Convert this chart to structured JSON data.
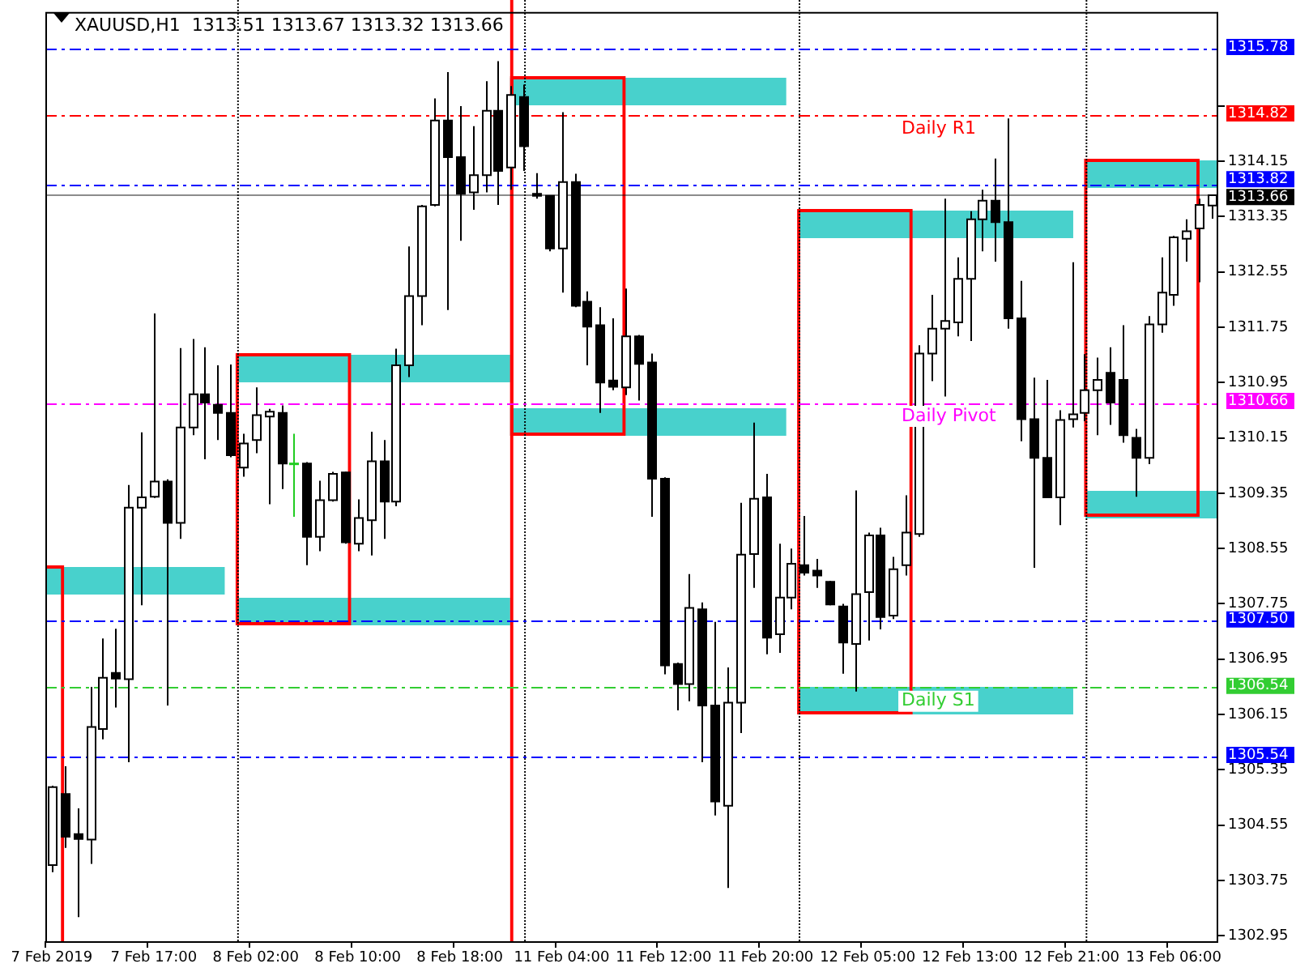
{
  "chart_data": {
    "type": "candlestick",
    "title": "XAUUSD,H1  1313.51 1313.67 1313.32 1313.66",
    "categories": [
      "7 Feb 2019",
      null,
      null,
      null,
      null,
      null,
      null,
      null,
      "7 Feb 17:00",
      null,
      null,
      null,
      null,
      null,
      null,
      null,
      "8 Feb 02:00",
      null,
      null,
      null,
      null,
      null,
      null,
      null,
      "8 Feb 10:00",
      null,
      null,
      null,
      null,
      null,
      null,
      null,
      "8 Feb 18:00",
      null,
      null,
      null,
      null,
      null,
      null,
      null,
      "11 Feb 04:00",
      null,
      null,
      null,
      null,
      null,
      null,
      null,
      "11 Feb 12:00",
      null,
      null,
      null,
      null,
      null,
      null,
      null,
      "11 Feb 20:00",
      null,
      null,
      null,
      null,
      null,
      null,
      null,
      "12 Feb 05:00",
      null,
      null,
      null,
      null,
      null,
      null,
      null,
      "12 Feb 13:00",
      null,
      null,
      null,
      null,
      null,
      null,
      null,
      "12 Feb 21:00",
      null,
      null,
      null,
      null,
      null,
      null,
      null,
      "13 Feb 06:00",
      null,
      null,
      null
    ],
    "ohlc": [
      [
        1303.97,
        1305.12,
        1303.87,
        1305.1
      ],
      [
        1305.0,
        1305.4,
        1304.22,
        1304.38
      ],
      [
        1304.42,
        1304.79,
        1303.22,
        1304.35
      ],
      [
        1304.34,
        1306.55,
        1303.99,
        1305.97
      ],
      [
        1305.94,
        1307.25,
        1305.79,
        1306.68
      ],
      [
        1306.75,
        1307.39,
        1306.25,
        1306.67
      ],
      [
        1306.66,
        1309.47,
        1305.46,
        1309.14
      ],
      [
        1309.14,
        1310.23,
        1307.73,
        1309.29
      ],
      [
        1309.3,
        1311.95,
        1309.28,
        1309.52
      ],
      [
        1309.52,
        1309.55,
        1306.28,
        1308.92
      ],
      [
        1308.92,
        1311.45,
        1308.69,
        1310.3
      ],
      [
        1310.3,
        1311.58,
        1310.19,
        1310.78
      ],
      [
        1310.78,
        1311.46,
        1309.84,
        1310.66
      ],
      [
        1310.63,
        1311.2,
        1310.12,
        1310.51
      ],
      [
        1310.51,
        1311.21,
        1309.87,
        1309.9
      ],
      [
        1309.72,
        1310.21,
        1309.59,
        1310.07
      ],
      [
        1310.12,
        1310.88,
        1309.93,
        1310.48
      ],
      [
        1310.46,
        1310.57,
        1309.19,
        1310.53
      ],
      [
        1310.51,
        1310.62,
        1309.41,
        1309.78
      ],
      [
        1309.78,
        1310.21,
        1309.01,
        1309.78
      ],
      [
        1309.78,
        1309.8,
        1308.31,
        1308.72
      ],
      [
        1308.72,
        1309.53,
        1308.51,
        1309.25
      ],
      [
        1309.25,
        1309.66,
        1309.23,
        1309.63
      ],
      [
        1309.65,
        1309.66,
        1308.62,
        1308.64
      ],
      [
        1308.62,
        1309.26,
        1308.51,
        1308.99
      ],
      [
        1308.96,
        1310.24,
        1308.45,
        1309.81
      ],
      [
        1309.81,
        1310.12,
        1308.69,
        1309.23
      ],
      [
        1309.23,
        1311.44,
        1309.16,
        1311.2
      ],
      [
        1311.2,
        1312.92,
        1311.03,
        1312.2
      ],
      [
        1312.2,
        1313.52,
        1311.78,
        1313.5
      ],
      [
        1313.52,
        1315.06,
        1313.5,
        1314.74
      ],
      [
        1314.74,
        1315.44,
        1312.0,
        1314.21
      ],
      [
        1314.21,
        1314.95,
        1313.0,
        1313.68
      ],
      [
        1313.7,
        1314.66,
        1313.45,
        1313.95
      ],
      [
        1313.95,
        1315.31,
        1313.7,
        1314.88
      ],
      [
        1314.88,
        1315.6,
        1313.52,
        1314.01
      ],
      [
        1314.06,
        1315.24,
        1313.74,
        1315.11
      ],
      [
        1315.08,
        1315.26,
        1314.01,
        1314.37
      ],
      [
        1313.68,
        1313.98,
        1313.61,
        1313.65
      ],
      [
        1313.65,
        1313.66,
        1312.85,
        1312.89
      ],
      [
        1312.89,
        1314.86,
        1312.25,
        1313.85
      ],
      [
        1313.85,
        1313.97,
        1312.04,
        1312.06
      ],
      [
        1312.12,
        1312.27,
        1311.2,
        1311.76
      ],
      [
        1311.78,
        1312.04,
        1310.51,
        1310.95
      ],
      [
        1310.98,
        1311.88,
        1310.84,
        1310.89
      ],
      [
        1310.88,
        1312.31,
        1310.77,
        1311.62
      ],
      [
        1311.62,
        1311.64,
        1310.69,
        1311.22
      ],
      [
        1311.24,
        1311.37,
        1309.01,
        1309.56
      ],
      [
        1309.56,
        1309.58,
        1306.73,
        1306.86
      ],
      [
        1306.88,
        1306.9,
        1306.21,
        1306.59
      ],
      [
        1306.59,
        1308.18,
        1306.34,
        1307.69
      ],
      [
        1307.67,
        1307.77,
        1305.46,
        1306.28
      ],
      [
        1306.28,
        1307.49,
        1304.69,
        1304.89
      ],
      [
        1304.83,
        1306.83,
        1303.64,
        1306.32
      ],
      [
        1306.32,
        1309.21,
        1305.88,
        1308.46
      ],
      [
        1308.47,
        1310.37,
        1307.98,
        1309.27
      ],
      [
        1309.29,
        1309.63,
        1307.02,
        1307.26
      ],
      [
        1307.31,
        1308.62,
        1307.04,
        1307.84
      ],
      [
        1307.84,
        1308.55,
        1307.67,
        1308.33
      ],
      [
        1308.31,
        1309.02,
        1308.16,
        1308.2
      ],
      [
        1308.23,
        1308.4,
        1307.98,
        1308.16
      ],
      [
        1308.07,
        1308.08,
        1307.73,
        1307.74
      ],
      [
        1307.71,
        1307.75,
        1306.74,
        1307.19
      ],
      [
        1307.17,
        1309.39,
        1306.48,
        1307.89
      ],
      [
        1307.92,
        1308.78,
        1307.22,
        1308.74
      ],
      [
        1308.74,
        1308.85,
        1307.38,
        1307.56
      ],
      [
        1307.58,
        1308.43,
        1307.53,
        1308.25
      ],
      [
        1308.31,
        1309.32,
        1308.16,
        1308.78
      ],
      [
        1308.76,
        1311.49,
        1308.72,
        1311.37
      ],
      [
        1311.37,
        1312.22,
        1310.97,
        1311.73
      ],
      [
        1311.73,
        1313.61,
        1310.75,
        1311.84
      ],
      [
        1311.82,
        1312.76,
        1311.62,
        1312.45
      ],
      [
        1312.45,
        1313.43,
        1311.55,
        1313.31
      ],
      [
        1313.31,
        1313.74,
        1312.85,
        1313.58
      ],
      [
        1313.58,
        1314.19,
        1312.7,
        1313.27
      ],
      [
        1313.27,
        1314.77,
        1311.73,
        1311.88
      ],
      [
        1311.88,
        1312.42,
        1310.1,
        1310.42
      ],
      [
        1310.42,
        1311.02,
        1308.27,
        1309.86
      ],
      [
        1309.86,
        1310.99,
        1309.28,
        1309.29
      ],
      [
        1309.29,
        1310.55,
        1308.89,
        1310.41
      ],
      [
        1310.42,
        1312.69,
        1310.3,
        1310.49
      ],
      [
        1310.51,
        1311.36,
        1310.39,
        1310.84
      ],
      [
        1310.84,
        1311.31,
        1310.19,
        1310.99
      ],
      [
        1311.09,
        1311.46,
        1310.34,
        1310.66
      ],
      [
        1310.99,
        1311.78,
        1310.08,
        1310.19
      ],
      [
        1310.15,
        1310.28,
        1309.3,
        1309.86
      ],
      [
        1309.86,
        1311.91,
        1309.77,
        1311.79
      ],
      [
        1311.79,
        1312.76,
        1311.67,
        1312.25
      ],
      [
        1312.22,
        1313.07,
        1312.06,
        1313.05
      ],
      [
        1313.03,
        1313.31,
        1312.7,
        1313.14
      ],
      [
        1313.18,
        1313.61,
        1312.4,
        1313.52
      ],
      [
        1313.51,
        1313.67,
        1313.32,
        1313.66
      ]
    ],
    "ylim": [
      1302.87,
      1316.31
    ],
    "yticks": [
      1302.95,
      1303.75,
      1304.55,
      1305.35,
      1306.15,
      1306.95,
      1307.75,
      1308.55,
      1309.35,
      1310.15,
      1310.95,
      1311.75,
      1312.55,
      1313.35,
      1314.15,
      {
        "value": 1314.95,
        "label": null
      }
    ],
    "ref_lines": [
      {
        "axis": "y",
        "value": 1315.78,
        "label": "1315.78",
        "color": "#0000ff",
        "line_style": "dashed"
      },
      {
        "axis": "y",
        "value": 1314.82,
        "label": "1314.82",
        "color": "#ff0000",
        "line_style": "dashed"
      },
      {
        "axis": "y",
        "value": 1313.82,
        "label": "1313.82",
        "color": "#0000ff",
        "line_style": "dashed"
      },
      {
        "axis": "y",
        "value": 1313.66,
        "label": "1313.66",
        "color": "#000000",
        "line_style": "solid"
      },
      {
        "axis": "y",
        "value": 1310.66,
        "label": "1310.66",
        "color": "#ff00ff",
        "line_style": "dashed"
      },
      {
        "axis": "y",
        "value": 1307.5,
        "label": "1307.50",
        "color": "#0000ff",
        "line_style": "dashed"
      },
      {
        "axis": "y",
        "value": 1306.54,
        "label": "1306.54",
        "color": "#32cd32",
        "line_style": "dashed"
      },
      {
        "axis": "y",
        "value": 1305.54,
        "label": "1305.54",
        "color": "#0000ff",
        "line_style": "dashed"
      }
    ],
    "annotations": [
      {
        "text": "Daily R1",
        "y": 1314.82
      },
      {
        "text": "Daily Pivot",
        "y": 1310.66
      },
      {
        "text": "Daily S1",
        "y": 1306.54
      }
    ]
  }
}
